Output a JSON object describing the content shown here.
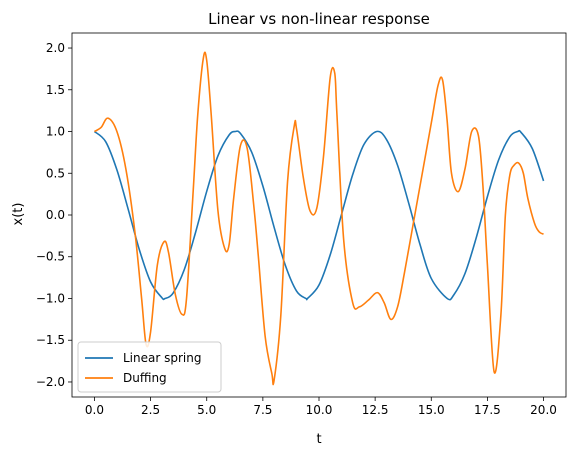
{
  "chart_data": {
    "type": "line",
    "title": "Linear vs non-linear response",
    "xlabel": "t",
    "ylabel": "x(t)",
    "xlim": [
      -1.0,
      21.0
    ],
    "ylim": [
      -2.18,
      2.18
    ],
    "xticks": [
      0.0,
      2.5,
      5.0,
      7.5,
      10.0,
      12.5,
      15.0,
      17.5,
      20.0
    ],
    "xtick_labels": [
      "0.0",
      "2.5",
      "5.0",
      "7.5",
      "10.0",
      "12.5",
      "15.0",
      "17.5",
      "20.0"
    ],
    "yticks": [
      -2.0,
      -1.5,
      -1.0,
      -0.5,
      0.0,
      0.5,
      1.0,
      1.5,
      2.0
    ],
    "ytick_labels": [
      "−2.0",
      "−1.5",
      "−1.0",
      "−0.5",
      "0.0",
      "0.5",
      "1.0",
      "1.5",
      "2.0"
    ],
    "grid": false,
    "legend_position": "lower-left",
    "series": [
      {
        "name": "Linear spring",
        "color": "#1f77b4",
        "x": [
          0,
          0.5,
          1,
          1.5,
          2,
          2.5,
          3,
          3.14,
          3.5,
          4,
          4.5,
          5,
          5.5,
          6,
          6.28,
          6.5,
          7,
          7.5,
          8,
          8.5,
          9,
          9.42,
          9.5,
          10,
          10.5,
          11,
          11.5,
          12,
          12.57,
          13,
          13.5,
          14,
          14.5,
          15,
          15.71,
          16,
          16.5,
          17,
          17.5,
          18,
          18.5,
          18.85,
          19,
          19.5,
          20
        ],
        "y": [
          1.0,
          0.878,
          0.54,
          0.071,
          -0.416,
          -0.801,
          -0.99,
          -1.0,
          -0.936,
          -0.654,
          -0.211,
          0.284,
          0.709,
          0.96,
          1.0,
          0.977,
          0.754,
          0.347,
          -0.146,
          -0.602,
          -0.911,
          -1.0,
          -0.997,
          -0.839,
          -0.476,
          0.004,
          0.483,
          0.844,
          1.0,
          0.907,
          0.595,
          0.137,
          -0.355,
          -0.76,
          -1.0,
          -0.958,
          -0.702,
          -0.275,
          0.22,
          0.66,
          0.938,
          1.0,
          0.989,
          0.795,
          0.408
        ]
      },
      {
        "name": "Duffing",
        "color": "#ff7f0e",
        "x": [
          0,
          0.3,
          0.6,
          1.0,
          1.4,
          1.8,
          2.1,
          2.3,
          2.5,
          2.8,
          3.1,
          3.3,
          3.6,
          3.9,
          4.1,
          4.4,
          4.6,
          4.85,
          5.0,
          5.2,
          5.5,
          5.8,
          6.0,
          6.2,
          6.5,
          6.8,
          7.1,
          7.3,
          7.6,
          7.9,
          8.0,
          8.3,
          8.6,
          8.9,
          9.0,
          9.3,
          9.6,
          9.9,
          10.2,
          10.5,
          10.7,
          10.8,
          11.1,
          11.5,
          11.8,
          12.2,
          12.6,
          12.9,
          13.2,
          13.5,
          13.8,
          14.2,
          14.6,
          15.0,
          15.3,
          15.5,
          15.7,
          15.9,
          16.2,
          16.5,
          16.8,
          17.1,
          17.3,
          17.5,
          17.8,
          18.1,
          18.3,
          18.5,
          18.7,
          18.9,
          19.1,
          19.3,
          19.6,
          19.8,
          20.0
        ],
        "y": [
          1.0,
          1.05,
          1.16,
          1.0,
          0.55,
          -0.2,
          -1.0,
          -1.55,
          -1.4,
          -0.6,
          -0.32,
          -0.45,
          -0.95,
          -1.19,
          -1.0,
          0.3,
          1.2,
          1.88,
          1.85,
          1.2,
          0.05,
          -0.4,
          -0.35,
          0.2,
          0.83,
          0.8,
          0.1,
          -0.5,
          -1.45,
          -1.9,
          -1.98,
          -1.2,
          0.4,
          1.07,
          1.03,
          0.45,
          0.05,
          0.08,
          0.7,
          1.65,
          1.7,
          1.2,
          -0.3,
          -1.05,
          -1.1,
          -1.02,
          -0.93,
          -1.05,
          -1.25,
          -1.1,
          -0.7,
          -0.1,
          0.5,
          1.1,
          1.55,
          1.62,
          1.15,
          0.5,
          0.28,
          0.55,
          1.0,
          0.95,
          0.35,
          -0.6,
          -1.88,
          -1.2,
          0.0,
          0.48,
          0.6,
          0.62,
          0.5,
          0.2,
          -0.1,
          -0.2,
          -0.23
        ]
      }
    ]
  }
}
